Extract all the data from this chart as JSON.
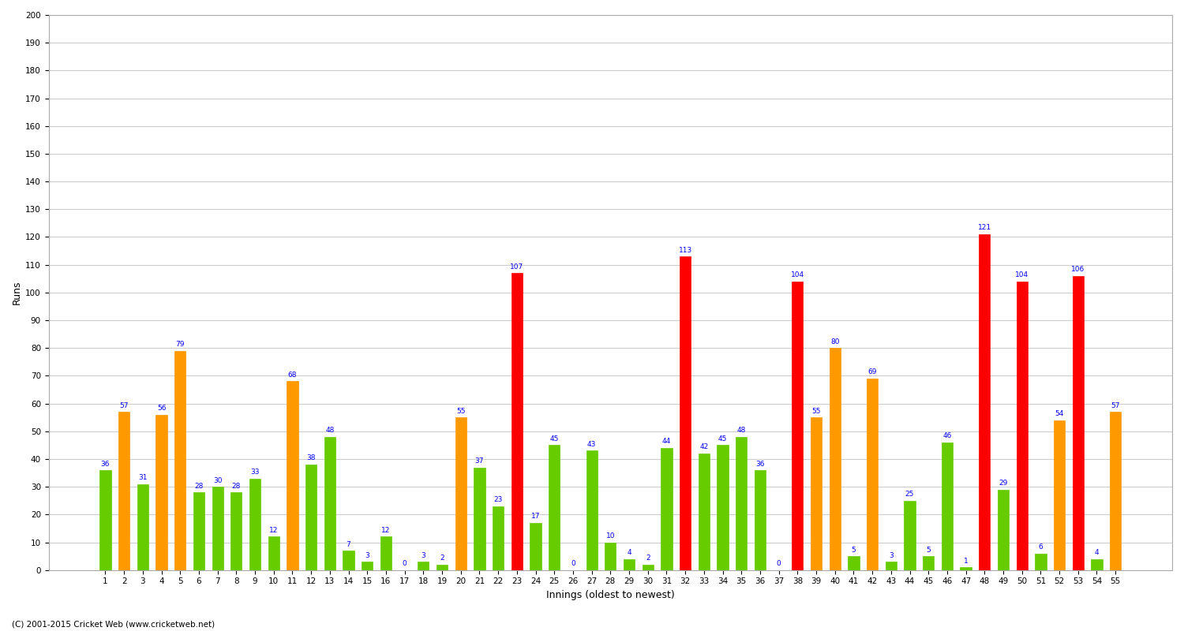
{
  "title": "",
  "xlabel": "Innings (oldest to newest)",
  "ylabel": "Runs",
  "background_color": "#ffffff",
  "grid_color": "#cccccc",
  "ylim": [
    0,
    200
  ],
  "yticks": [
    0,
    10,
    20,
    30,
    40,
    50,
    60,
    70,
    80,
    90,
    100,
    110,
    120,
    130,
    140,
    150,
    160,
    170,
    180,
    190,
    200
  ],
  "innings": [
    1,
    2,
    3,
    4,
    5,
    6,
    7,
    8,
    9,
    10,
    11,
    12,
    13,
    14,
    15,
    16,
    17,
    18,
    19,
    20,
    21,
    22,
    23,
    24,
    25,
    26,
    27,
    28,
    29,
    30,
    31,
    32,
    33,
    34,
    35,
    36,
    37,
    38,
    39,
    40,
    41,
    42,
    43,
    44,
    45,
    46,
    47,
    48,
    49,
    50,
    51,
    52,
    53,
    54,
    55
  ],
  "values": [
    36,
    57,
    31,
    56,
    79,
    28,
    30,
    28,
    33,
    12,
    68,
    38,
    48,
    7,
    3,
    12,
    0,
    3,
    2,
    55,
    37,
    23,
    107,
    17,
    45,
    0,
    43,
    10,
    4,
    2,
    44,
    113,
    42,
    45,
    48,
    36,
    0,
    104,
    55,
    80,
    5,
    69,
    3,
    25,
    5,
    46,
    1,
    121,
    29,
    104,
    6,
    54,
    106,
    4,
    57
  ],
  "color_green": "#66cc00",
  "color_orange": "#ff9900",
  "color_red": "#ff0000",
  "footer": "(C) 2001-2015 Cricket Web (www.cricketweb.net)",
  "label_fontsize": 6.5,
  "xlabel_fontsize": 9,
  "ylabel_fontsize": 9,
  "tick_fontsize": 7.5,
  "bar_width": 0.6
}
